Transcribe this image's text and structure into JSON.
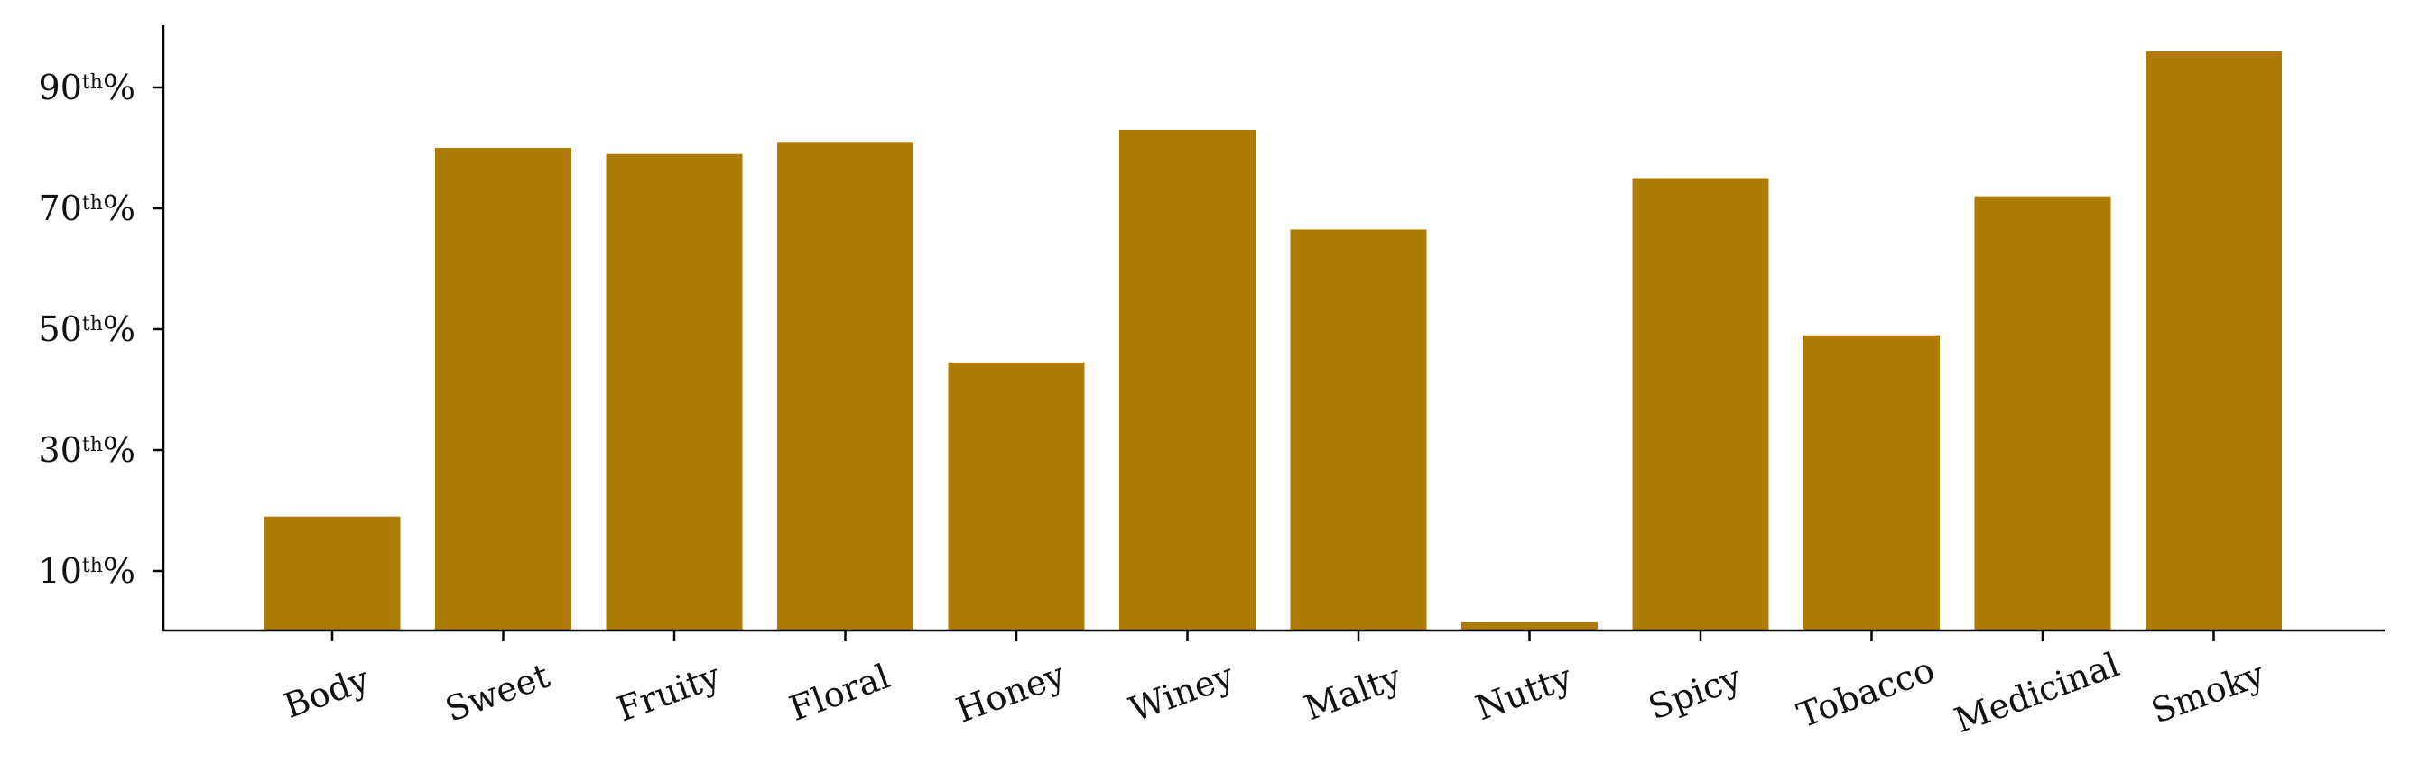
{
  "chart_data": {
    "type": "bar",
    "categories": [
      "Body",
      "Sweet",
      "Fruity",
      "Floral",
      "Honey",
      "Winey",
      "Malty",
      "Nutty",
      "Spicy",
      "Tobacco",
      "Medicinal",
      "Smoky"
    ],
    "values": [
      19,
      80,
      79,
      81,
      44.5,
      83,
      66.5,
      1.5,
      75,
      49,
      72,
      96
    ],
    "ylim": [
      0,
      100
    ],
    "yticks": [
      10,
      30,
      50,
      70,
      90
    ],
    "ytick_labels": [
      {
        "num": "10",
        "sup": "th",
        "pct": "%"
      },
      {
        "num": "30",
        "sup": "th",
        "pct": "%"
      },
      {
        "num": "50",
        "sup": "th",
        "pct": "%"
      },
      {
        "num": "70",
        "sup": "th",
        "pct": "%"
      },
      {
        "num": "90",
        "sup": "th",
        "pct": "%"
      }
    ],
    "bar_color": "#AE7C05",
    "grid": false,
    "xlabel": "",
    "ylabel": "",
    "title": ""
  }
}
